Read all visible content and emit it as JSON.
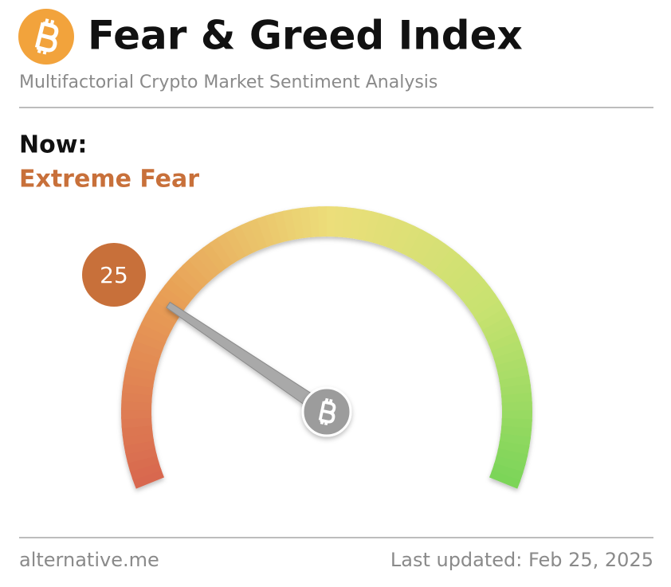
{
  "chart_data": {
    "type": "gauge",
    "title": "Fear & Greed Index",
    "subtitle": "Multifactorial Crypto Market Sentiment Analysis",
    "label": "Now:",
    "classification": "Extreme Fear",
    "value": 25,
    "ylim": [
      0,
      100
    ],
    "color": "#c8703a",
    "source": "alternative.me",
    "updated": "Last updated: Feb 25, 2025"
  }
}
